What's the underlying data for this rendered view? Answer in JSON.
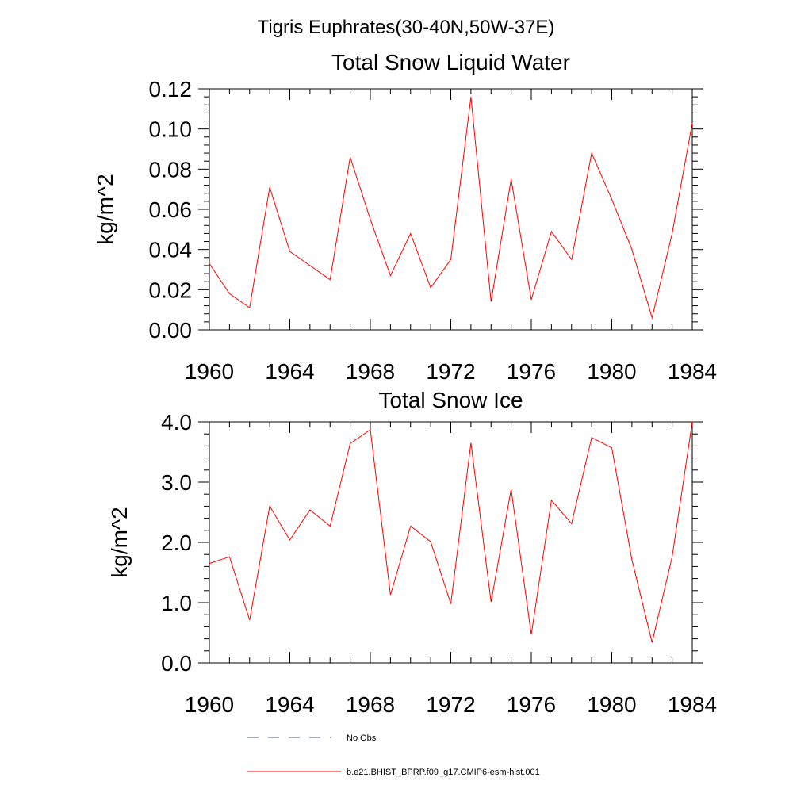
{
  "figure": {
    "title": "Tigris Euphrates(30-40N,50W-37E)",
    "legend": [
      {
        "label": "No Obs",
        "style": "dashed",
        "color": "#4a5a8a"
      },
      {
        "label": "b.e21.BHIST_BPRP.f09_g17.CMIP6-esm-hist.001",
        "style": "solid",
        "color": "#ff0000"
      }
    ]
  },
  "chart_data": [
    {
      "type": "line",
      "title": "Total Snow Liquid Water",
      "xlabel": "",
      "ylabel": "kg/m^2",
      "xlim": [
        1960,
        1984
      ],
      "ylim": [
        0,
        0.12
      ],
      "xticks": [
        1960,
        1964,
        1968,
        1972,
        1976,
        1980,
        1984
      ],
      "yticks": [
        0.0,
        0.02,
        0.04,
        0.06,
        0.08,
        0.1,
        0.12
      ],
      "ytick_labels": [
        "0.00",
        "0.02",
        "0.04",
        "0.06",
        "0.08",
        "0.10",
        "0.12"
      ],
      "grid": false,
      "series": [
        {
          "name": "b.e21.BHIST_BPRP.f09_g17.CMIP6-esm-hist.001",
          "color": "#ff0000",
          "x": [
            1960,
            1961,
            1962,
            1963,
            1964,
            1965,
            1966,
            1967,
            1968,
            1969,
            1970,
            1971,
            1972,
            1973,
            1974,
            1975,
            1976,
            1977,
            1978,
            1979,
            1980,
            1981,
            1982,
            1983,
            1984
          ],
          "values": [
            0.033,
            0.018,
            0.011,
            0.071,
            0.039,
            0.032,
            0.025,
            0.086,
            0.055,
            0.027,
            0.048,
            0.021,
            0.035,
            0.116,
            0.014,
            0.075,
            0.015,
            0.049,
            0.035,
            0.088,
            0.065,
            0.04,
            0.006,
            0.048,
            0.103
          ]
        }
      ]
    },
    {
      "type": "line",
      "title": "Total Snow Ice",
      "xlabel": "",
      "ylabel": "kg/m^2",
      "xlim": [
        1960,
        1984
      ],
      "ylim": [
        0,
        4.0
      ],
      "xticks": [
        1960,
        1964,
        1968,
        1972,
        1976,
        1980,
        1984
      ],
      "yticks": [
        0.0,
        1.0,
        2.0,
        3.0,
        4.0
      ],
      "ytick_labels": [
        "0.0",
        "1.0",
        "2.0",
        "3.0",
        "4.0"
      ],
      "grid": false,
      "series": [
        {
          "name": "b.e21.BHIST_BPRP.f09_g17.CMIP6-esm-hist.001",
          "color": "#ff0000",
          "x": [
            1960,
            1961,
            1962,
            1963,
            1964,
            1965,
            1966,
            1967,
            1968,
            1969,
            1970,
            1971,
            1972,
            1973,
            1974,
            1975,
            1976,
            1977,
            1978,
            1979,
            1980,
            1981,
            1982,
            1983,
            1984
          ],
          "values": [
            1.65,
            1.76,
            0.71,
            2.6,
            2.04,
            2.54,
            2.27,
            3.64,
            3.87,
            1.13,
            2.27,
            2.01,
            0.98,
            3.65,
            1.01,
            2.88,
            0.47,
            2.7,
            2.31,
            3.74,
            3.57,
            1.71,
            0.34,
            1.76,
            4.0
          ]
        }
      ]
    }
  ]
}
